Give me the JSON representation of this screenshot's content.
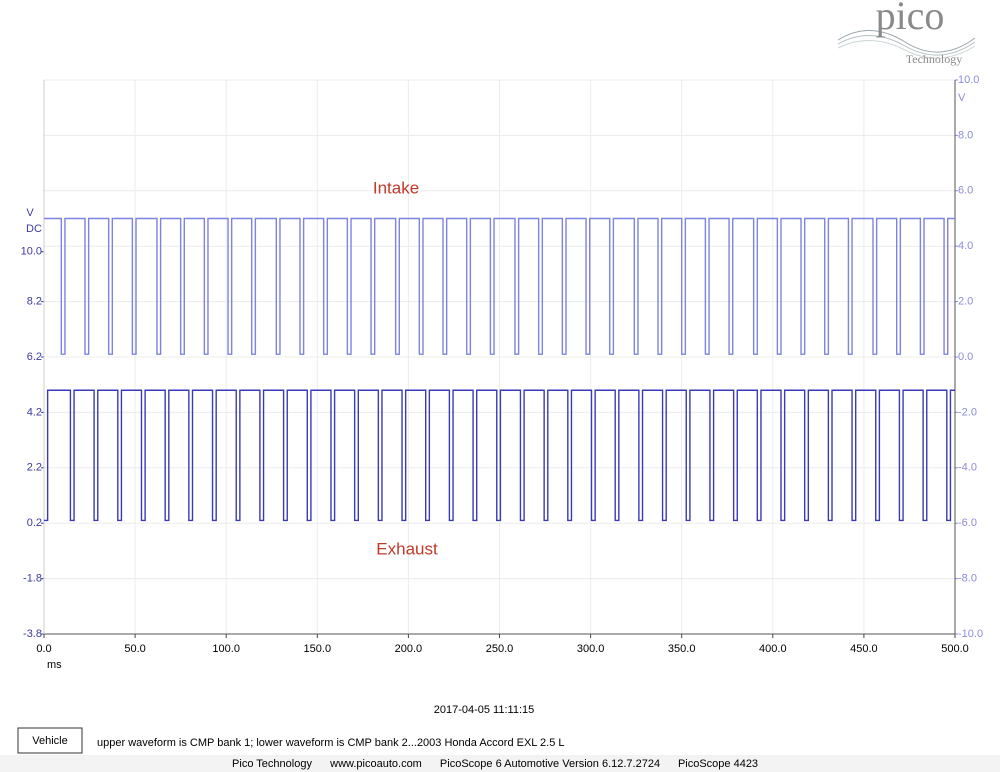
{
  "logo": {
    "name": "pico",
    "tagline": "Technology"
  },
  "chart_data": {
    "type": "line",
    "x_label": "ms",
    "y_unit": "V",
    "y_coupling": "DC",
    "y2_unit": "V",
    "xlim": [
      0,
      500
    ],
    "xticks": [
      {
        "value": 0,
        "label": "0.0"
      },
      {
        "value": 50,
        "label": "50.0"
      },
      {
        "value": 100,
        "label": "100.0"
      },
      {
        "value": 150,
        "label": "150.0"
      },
      {
        "value": 200,
        "label": "200.0"
      },
      {
        "value": 250,
        "label": "250.0"
      },
      {
        "value": 300,
        "label": "300.0"
      },
      {
        "value": 350,
        "label": "350.0"
      },
      {
        "value": 400,
        "label": "400.0"
      },
      {
        "value": 450,
        "label": "450.0"
      },
      {
        "value": 500,
        "label": "500.0"
      }
    ],
    "ylim": [
      -3.8,
      16.2
    ],
    "yticks": [
      {
        "value": 10,
        "label": "10.0"
      },
      8.2,
      6.2,
      4.2,
      2.2,
      0.2,
      -1.8,
      -3.8
    ],
    "y2lim": [
      -10,
      10
    ],
    "y2ticks": [
      {
        "value": 10,
        "label": "10.0"
      },
      {
        "value": 8,
        "label": "8.0"
      },
      {
        "value": 6,
        "label": "6.0"
      },
      {
        "value": 4,
        "label": "4.0"
      },
      {
        "value": 2,
        "label": "2.0"
      },
      {
        "value": 0,
        "label": "0.0"
      },
      {
        "value": -2,
        "label": "-2.0"
      },
      {
        "value": -4,
        "label": "-4.0"
      },
      {
        "value": -6,
        "label": "-6.0"
      },
      {
        "value": -8,
        "label": "-8.0"
      },
      {
        "value": -10,
        "label": "-10.0"
      }
    ],
    "grid": true,
    "series": [
      {
        "name": "Intake",
        "color": "#7f82e0",
        "axis": "y2",
        "x": [
          0,
          9.5,
          9.5,
          11.5,
          11.5,
          22.5,
          22.5,
          24.5,
          24.5,
          35.5,
          35.5,
          37.5,
          37.5,
          48.5,
          48.5,
          50.5,
          50.5,
          62,
          62,
          64,
          64,
          75,
          75,
          77,
          77,
          88,
          88,
          90,
          90,
          101,
          101,
          103,
          103,
          114,
          114,
          116,
          116,
          127.5,
          127.5,
          129.5,
          129.5,
          140.5,
          140.5,
          142.5,
          142.5,
          153.5,
          153.5,
          155.5,
          155.5,
          166.5,
          166.5,
          168.5,
          168.5,
          179.5,
          179.5,
          181.5,
          181.5,
          193,
          193,
          195,
          195,
          206,
          206,
          208,
          208,
          219,
          219,
          221,
          221,
          232,
          232,
          234,
          234,
          245,
          245,
          247,
          247,
          258.5,
          258.5,
          260.5,
          260.5,
          271.5,
          271.5,
          273.5,
          273.5,
          284.5,
          284.5,
          286.5,
          286.5,
          297.5,
          297.5,
          299.5,
          299.5,
          310.5,
          310.5,
          312.5,
          312.5,
          324,
          324,
          326,
          326,
          337,
          337,
          339,
          339,
          350,
          350,
          352,
          352,
          363,
          363,
          365,
          365,
          376,
          376,
          378,
          378,
          389.5,
          389.5,
          391.5,
          391.5,
          402.5,
          402.5,
          404.5,
          404.5,
          415.5,
          415.5,
          417.5,
          417.5,
          428.5,
          428.5,
          430.5,
          430.5,
          441.5,
          441.5,
          443.5,
          443.5,
          455,
          455,
          457,
          457,
          468,
          468,
          470,
          470,
          481,
          481,
          483,
          483,
          494,
          494,
          496,
          496,
          500
        ],
        "values": [
          5,
          5,
          0.1,
          0.1,
          5,
          5,
          0.1,
          0.1,
          5,
          5,
          0.1,
          0.1,
          5,
          5,
          0.1,
          0.1,
          5,
          5,
          0.1,
          0.1,
          5,
          5,
          0.1,
          0.1,
          5,
          5,
          0.1,
          0.1,
          5,
          5,
          0.1,
          0.1,
          5,
          5,
          0.1,
          0.1,
          5,
          5,
          0.1,
          0.1,
          5,
          5,
          0.1,
          0.1,
          5,
          5,
          0.1,
          0.1,
          5,
          5,
          0.1,
          0.1,
          5,
          5,
          0.1,
          0.1,
          5,
          5,
          0.1,
          0.1,
          5,
          5,
          0.1,
          0.1,
          5,
          5,
          0.1,
          0.1,
          5,
          5,
          0.1,
          0.1,
          5,
          5,
          0.1,
          0.1,
          5,
          5,
          0.1,
          0.1,
          5,
          5,
          0.1,
          0.1,
          5,
          5,
          0.1,
          0.1,
          5,
          5,
          0.1,
          0.1,
          5,
          5,
          0.1,
          0.1,
          5,
          5,
          0.1,
          0.1,
          5,
          5,
          0.1,
          0.1,
          5,
          5,
          0.1,
          0.1,
          5,
          5,
          0.1,
          0.1,
          5,
          5,
          0.1,
          0.1,
          5,
          5,
          0.1,
          0.1,
          5,
          5,
          0.1,
          0.1,
          5,
          5,
          0.1,
          0.1,
          5,
          5,
          0.1,
          0.1,
          5,
          5,
          0.1,
          0.1,
          5,
          5,
          0.1,
          0.1,
          5,
          5,
          0.1,
          0.1,
          5,
          5,
          0.1,
          0.1,
          5,
          5,
          0.1,
          0.1,
          5,
          5
        ]
      },
      {
        "name": "Exhaust",
        "color": "#3a3ab8",
        "axis": "y",
        "x": [
          0,
          2,
          2,
          14.5,
          14.5,
          16.5,
          16.5,
          27.5,
          27.5,
          29.5,
          29.5,
          40.5,
          40.5,
          42.5,
          42.5,
          53.5,
          53.5,
          55.5,
          55.5,
          66.5,
          66.5,
          68.5,
          68.5,
          79.5,
          79.5,
          81.5,
          81.5,
          92.5,
          92.5,
          94.5,
          94.5,
          105.5,
          105.5,
          107.5,
          107.5,
          118.5,
          118.5,
          120.5,
          120.5,
          131.5,
          131.5,
          133.5,
          133.5,
          144.5,
          144.5,
          146.5,
          146.5,
          157.5,
          157.5,
          159.5,
          159.5,
          170.5,
          170.5,
          172.5,
          172.5,
          183.5,
          183.5,
          185.5,
          185.5,
          196.5,
          196.5,
          198.5,
          198.5,
          209.5,
          209.5,
          211.5,
          211.5,
          222.5,
          222.5,
          224.5,
          224.5,
          235.5,
          235.5,
          237.5,
          237.5,
          248.5,
          248.5,
          250.5,
          250.5,
          261.5,
          261.5,
          263.5,
          263.5,
          274.5,
          274.5,
          276.5,
          276.5,
          287.5,
          287.5,
          289.5,
          289.5,
          300.5,
          300.5,
          302.5,
          302.5,
          313.5,
          313.5,
          315.5,
          315.5,
          326.5,
          326.5,
          328.5,
          328.5,
          339.5,
          339.5,
          341.5,
          341.5,
          352.5,
          352.5,
          354.5,
          354.5,
          365.5,
          365.5,
          367.5,
          367.5,
          378.5,
          378.5,
          380.5,
          380.5,
          391.5,
          391.5,
          393.5,
          393.5,
          404.5,
          404.5,
          406.5,
          406.5,
          417.5,
          417.5,
          419.5,
          419.5,
          430.5,
          430.5,
          432.5,
          432.5,
          443.5,
          443.5,
          445.5,
          445.5,
          456.5,
          456.5,
          458.5,
          458.5,
          469.5,
          469.5,
          471.5,
          471.5,
          482.5,
          482.5,
          484.5,
          484.5,
          495.5,
          495.5,
          497.5,
          497.5,
          500
        ],
        "values": [
          0.3,
          0.3,
          5,
          5,
          0.3,
          0.3,
          5,
          5,
          0.3,
          0.3,
          5,
          5,
          0.3,
          0.3,
          5,
          5,
          0.3,
          0.3,
          5,
          5,
          0.3,
          0.3,
          5,
          5,
          0.3,
          0.3,
          5,
          5,
          0.3,
          0.3,
          5,
          5,
          0.3,
          0.3,
          5,
          5,
          0.3,
          0.3,
          5,
          5,
          0.3,
          0.3,
          5,
          5,
          0.3,
          0.3,
          5,
          5,
          0.3,
          0.3,
          5,
          5,
          0.3,
          0.3,
          5,
          5,
          0.3,
          0.3,
          5,
          5,
          0.3,
          0.3,
          5,
          5,
          0.3,
          0.3,
          5,
          5,
          0.3,
          0.3,
          5,
          5,
          0.3,
          0.3,
          5,
          5,
          0.3,
          0.3,
          5,
          5,
          0.3,
          0.3,
          5,
          5,
          0.3,
          0.3,
          5,
          5,
          0.3,
          0.3,
          5,
          5,
          0.3,
          0.3,
          5,
          5,
          0.3,
          0.3,
          5,
          5,
          0.3,
          0.3,
          5,
          5,
          0.3,
          0.3,
          5,
          5,
          0.3,
          0.3,
          5,
          5,
          0.3,
          0.3,
          5,
          5,
          0.3,
          0.3,
          5,
          5,
          0.3,
          0.3,
          5,
          5,
          0.3,
          0.3,
          5,
          5,
          0.3,
          0.3,
          5,
          5,
          0.3,
          0.3,
          5,
          5,
          0.3,
          0.3,
          5,
          5,
          0.3,
          0.3,
          5,
          5,
          0.3,
          0.3,
          5,
          5,
          0.3,
          0.3,
          5,
          5,
          0.3,
          0.3,
          5,
          5
        ]
      }
    ]
  },
  "timestamp": "2017-04-05 11:11:15",
  "button": "Vehicle",
  "note": "upper waveform is CMP bank 1; lower waveform is CMP bank 2...2003 Honda Accord EXL 2.5 L",
  "footer": [
    "Pico Technology",
    "www.picoauto.com",
    "PicoScope 6 Automotive Version 6.12.7.2724",
    "PicoScope 4423"
  ]
}
